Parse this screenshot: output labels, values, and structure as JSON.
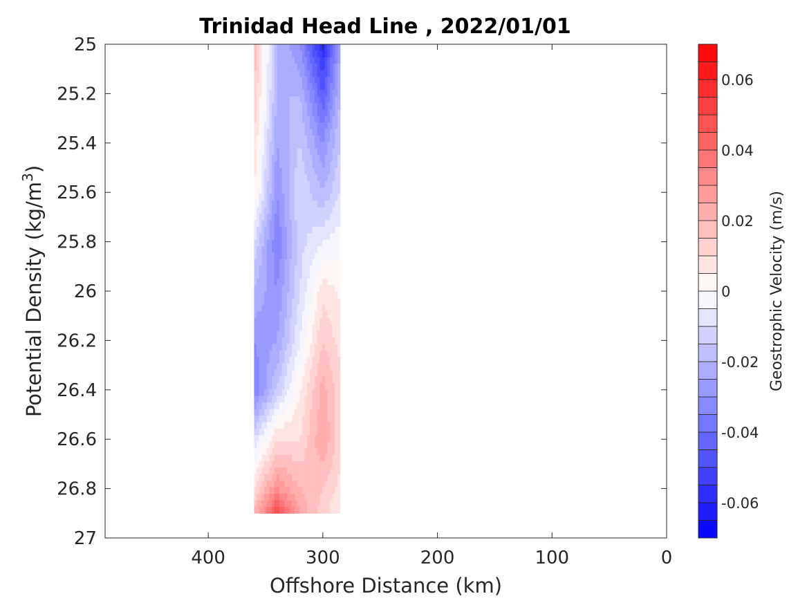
{
  "chart_data": {
    "type": "heatmap",
    "title": "Trinidad Head Line , 2022/01/01",
    "xlabel": "Offshore Distance (km)",
    "ylabel": "Potential Density (kg/m",
    "ylabel_superscript": "3",
    "ylabel_suffix": ")",
    "colorbar_label": "Geostrophic Velocity (m/s)",
    "xlim": [
      490,
      0
    ],
    "x_reversed": true,
    "ylim": [
      25,
      27
    ],
    "y_reversed": true,
    "x_ticks": [
      400,
      300,
      200,
      100,
      0
    ],
    "x_tick_labels": [
      "400",
      "300",
      "200",
      "100",
      "0"
    ],
    "y_ticks": [
      25,
      25.2,
      25.4,
      25.6,
      25.8,
      26,
      26.2,
      26.4,
      26.6,
      26.8,
      27
    ],
    "y_tick_labels": [
      "25",
      "25.2",
      "25.4",
      "25.6",
      "25.8",
      "26",
      "26.2",
      "26.4",
      "26.6",
      "26.8",
      "27"
    ],
    "colorbar_limits": [
      -0.07,
      0.07
    ],
    "colorbar_levels": 28,
    "colorbar_ticks": [
      0.06,
      0.04,
      0.02,
      0,
      -0.02,
      -0.04,
      -0.06
    ],
    "colorbar_tick_labels": [
      "0.06",
      "0.04",
      "0.02",
      "0",
      "-0.02",
      "-0.04",
      "-0.06"
    ],
    "colors": {
      "negative": "#0000ff",
      "zero": "#ffffff",
      "positive": "#ff0000"
    },
    "distance_columns_km": [
      360,
      340,
      320,
      300,
      285
    ],
    "density_rows": [
      25.0,
      25.2,
      25.4,
      25.6,
      25.8,
      26.0,
      26.2,
      26.4,
      26.6,
      26.8,
      26.9
    ],
    "velocity_grid": [
      [
        0.02,
        -0.02,
        -0.03,
        -0.06,
        -0.025
      ],
      [
        0.015,
        -0.02,
        -0.02,
        -0.045,
        -0.02
      ],
      [
        0.01,
        -0.025,
        -0.015,
        -0.03,
        -0.015
      ],
      [
        0.005,
        -0.03,
        -0.01,
        -0.02,
        -0.01
      ],
      [
        -0.01,
        -0.035,
        -0.012,
        -0.005,
        -0.002
      ],
      [
        -0.02,
        -0.03,
        -0.01,
        0.008,
        0.004
      ],
      [
        -0.03,
        -0.025,
        -0.005,
        0.015,
        0.008
      ],
      [
        -0.035,
        -0.015,
        0.005,
        0.022,
        0.012
      ],
      [
        -0.01,
        0.01,
        0.01,
        0.025,
        0.012
      ],
      [
        0.01,
        0.03,
        0.02,
        0.015,
        0.008
      ],
      [
        0.02,
        0.05,
        0.025,
        0.012,
        0.005
      ]
    ]
  }
}
